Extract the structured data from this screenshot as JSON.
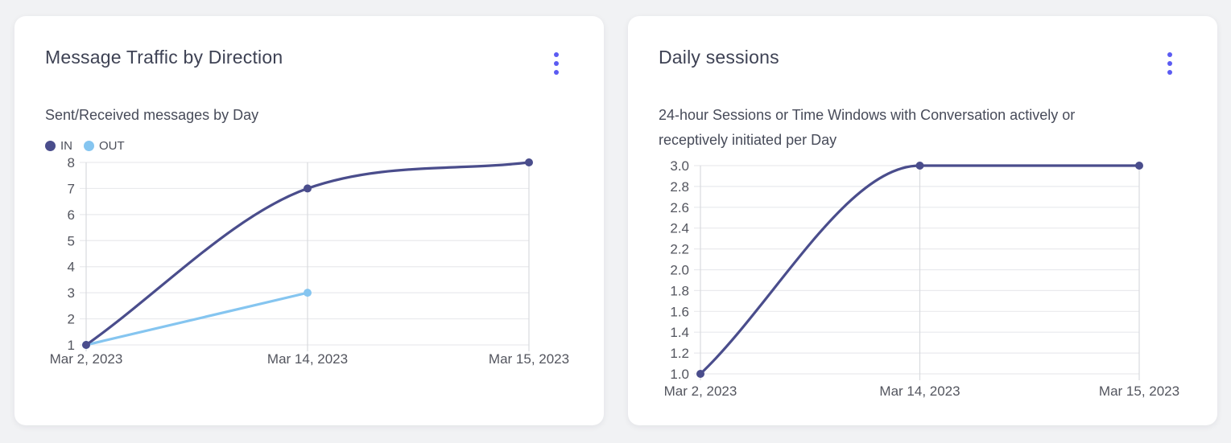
{
  "colors": {
    "page_background": "#f1f2f4",
    "card_background": "#ffffff",
    "menu_dots": "#5b5bf2",
    "series_in": "#4a4d8c",
    "series_out": "#85c5f0",
    "grid_line": "#e9eaed",
    "axis_line": "#d9dade",
    "title_text": "#3e4254",
    "subtitle_text": "#474b59",
    "axis_text": "#53555e",
    "legend_text": "#4c4f5a"
  },
  "cards": [
    {
      "title": "Message Traffic by Direction",
      "subtitle": "Sent/Received messages by Day"
    },
    {
      "title": "Daily sessions",
      "subtitle_lines": [
        "24-hour Sessions or Time Windows with Conversation actively or",
        "receptively initiated per Day"
      ]
    }
  ],
  "chart_data": [
    {
      "type": "line",
      "title": "Message Traffic by Direction",
      "subtitle": "Sent/Received messages by Day",
      "categories": [
        "Mar 2, 2023",
        "Mar 14, 2023",
        "Mar 15, 2023"
      ],
      "series": [
        {
          "name": "IN",
          "color": "#4a4d8c",
          "values": [
            1,
            7,
            8
          ]
        },
        {
          "name": "OUT",
          "color": "#85c5f0",
          "values": [
            1,
            3,
            null
          ]
        }
      ],
      "ylim": [
        1,
        8
      ],
      "y_tick_labels": [
        "1",
        "2",
        "3",
        "4",
        "5",
        "6",
        "7",
        "8"
      ],
      "grid": true,
      "legend_position": "top-left",
      "curve": "monotone"
    },
    {
      "type": "line",
      "title": "Daily sessions",
      "subtitle": "24-hour Sessions or Time Windows with Conversation actively or receptively initiated per Day",
      "categories": [
        "Mar 2, 2023",
        "Mar 14, 2023",
        "Mar 15, 2023"
      ],
      "series": [
        {
          "name": "",
          "color": "#4a4d8c",
          "values": [
            1.0,
            3.0,
            3.0
          ]
        }
      ],
      "ylim": [
        1.0,
        3.0
      ],
      "y_tick_labels": [
        "1.0",
        "1.2",
        "1.4",
        "1.6",
        "1.8",
        "2.0",
        "2.2",
        "2.4",
        "2.6",
        "2.8",
        "3.0"
      ],
      "grid": true,
      "legend_position": "none",
      "curve": "monotone"
    }
  ]
}
